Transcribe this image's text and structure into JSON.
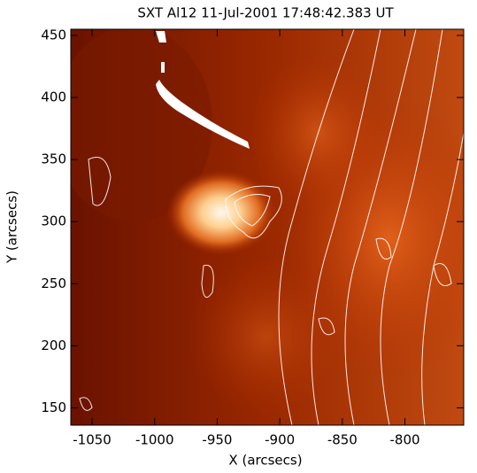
{
  "chart_data": {
    "type": "image",
    "title": "SXT Al12 11-Jul-2001 17:48:42.383 UT",
    "xlabel": "X (arcsecs)",
    "ylabel": "Y (arcsecs)",
    "xlim": [
      -1067,
      -753
    ],
    "ylim": [
      136,
      455
    ],
    "xticks": [
      -1050,
      -1000,
      -950,
      -900,
      -850,
      -800
    ],
    "yticks": [
      150,
      200,
      250,
      300,
      350,
      400,
      450
    ]
  }
}
